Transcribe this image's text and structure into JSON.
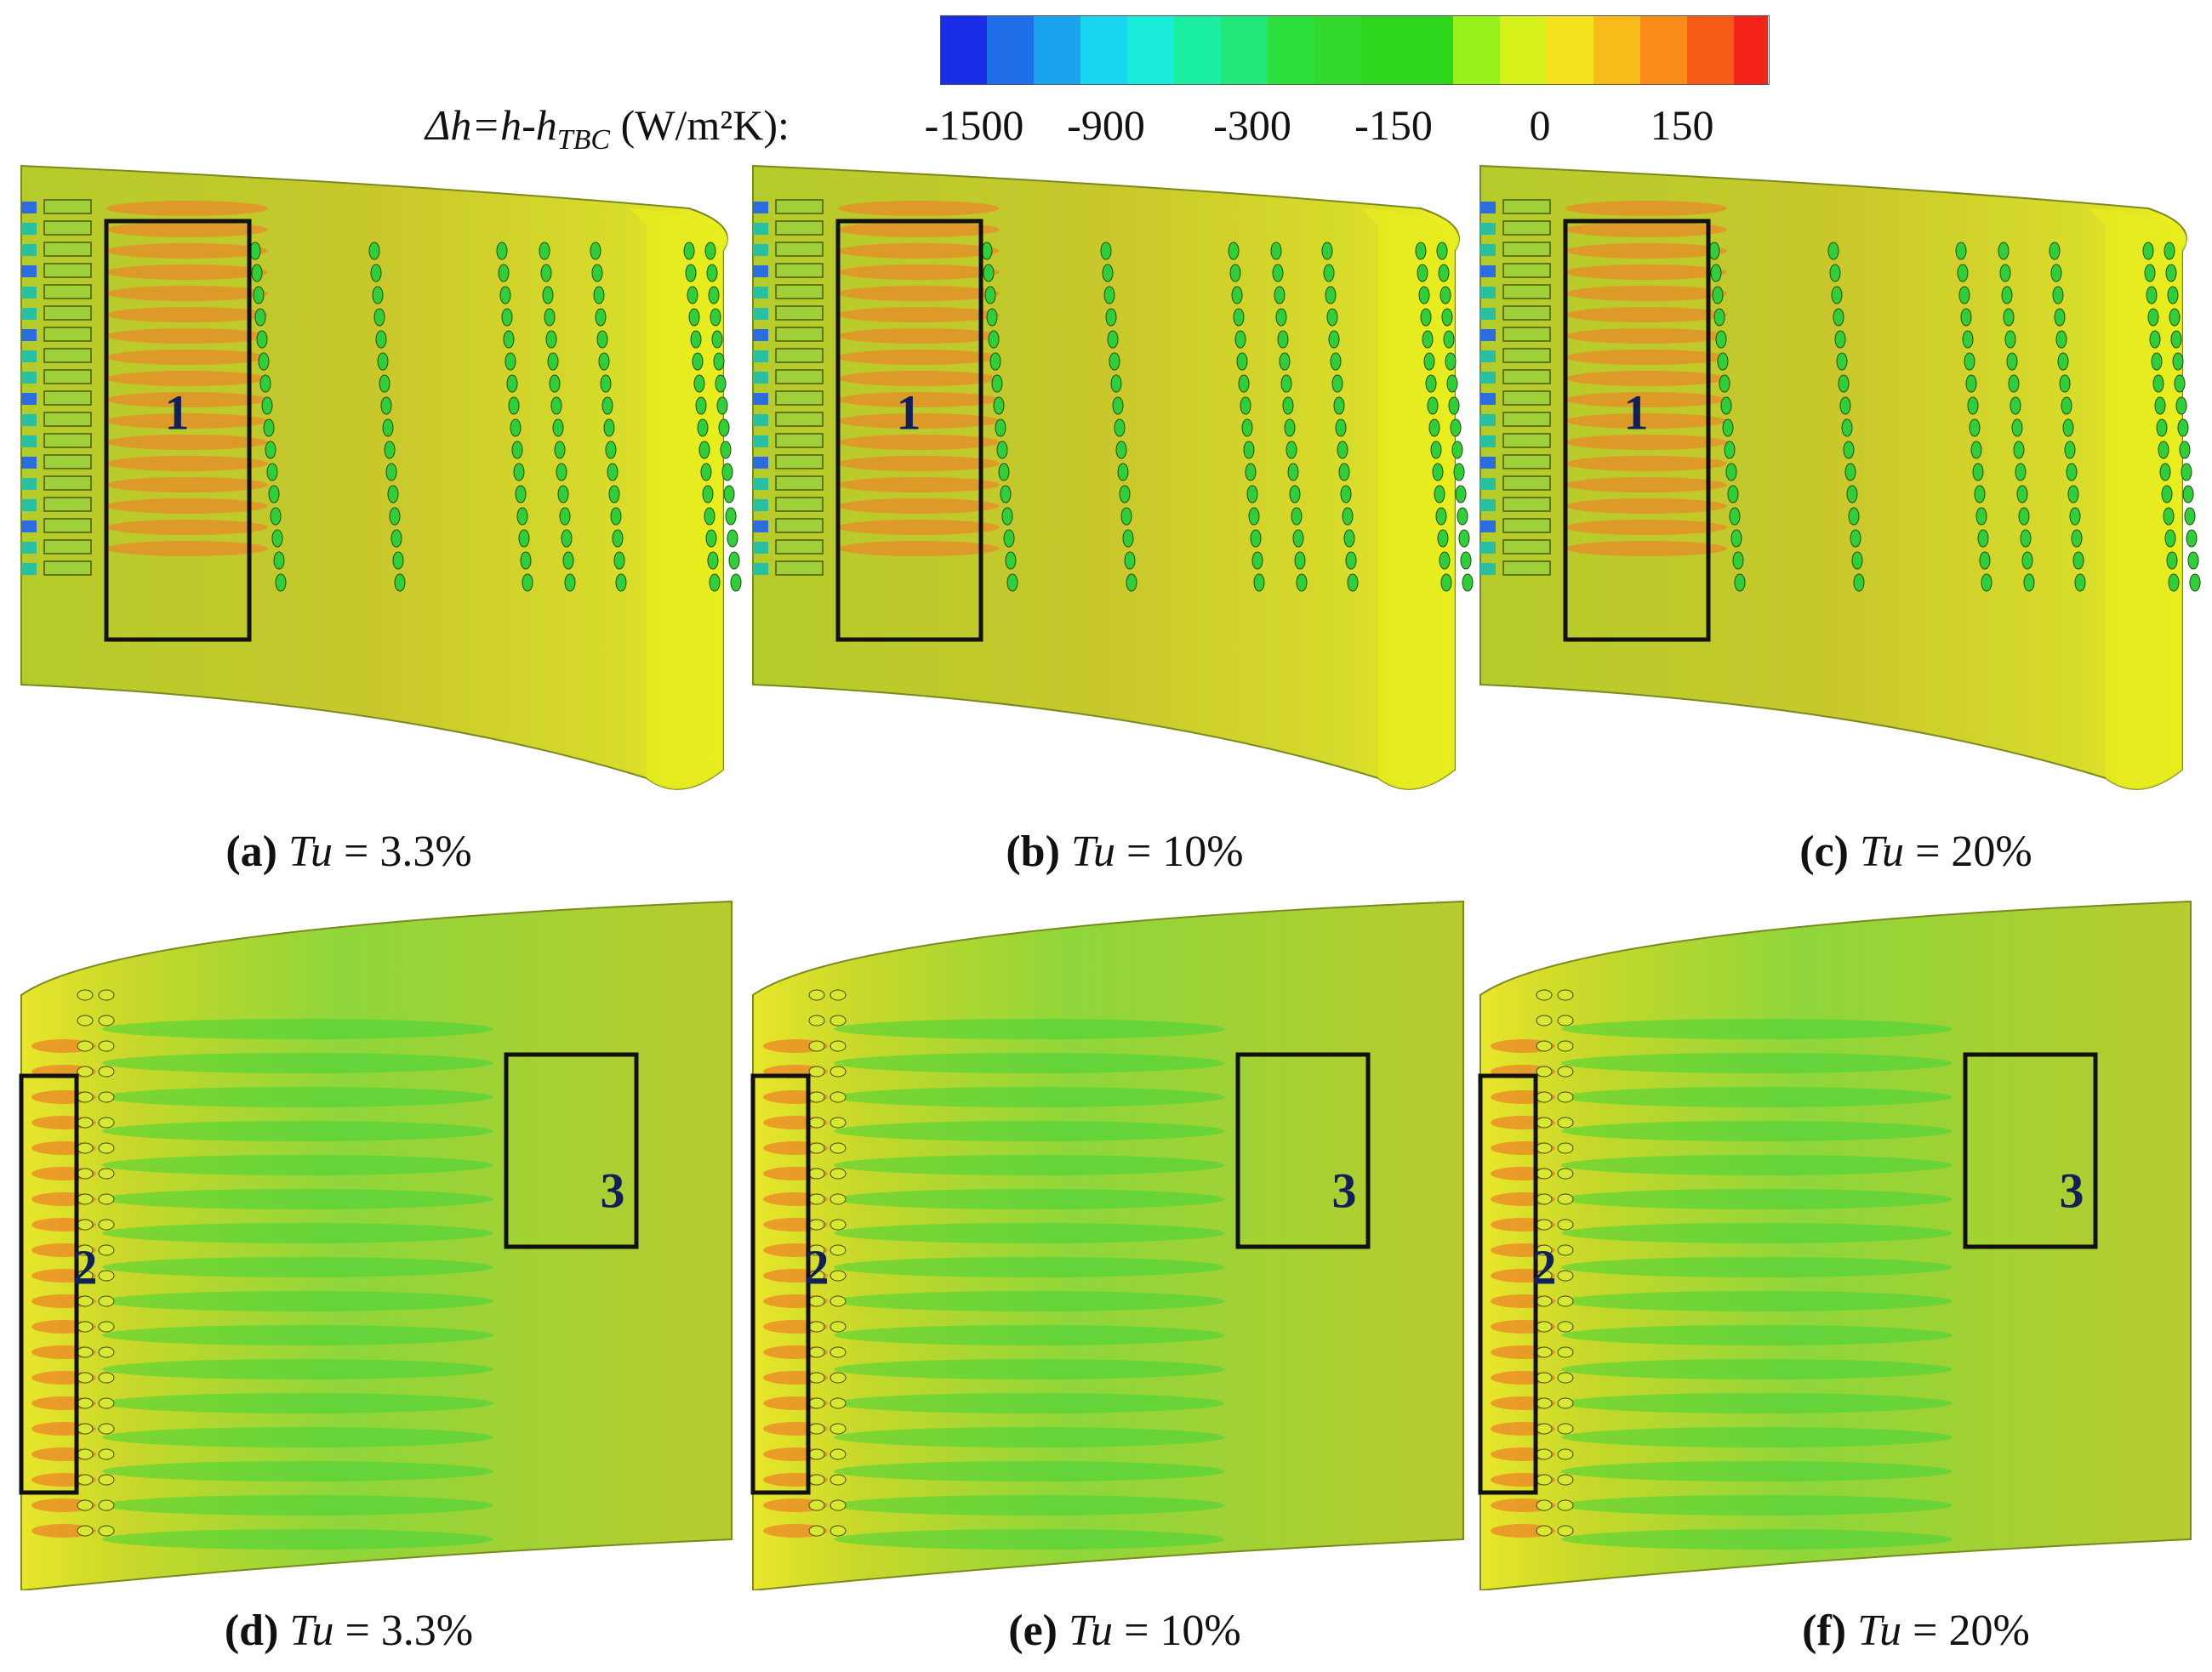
{
  "colorbar": {
    "label_var": "Δh=h-h",
    "label_sub": "TBC",
    "label_unit": " (W/m²K):",
    "ticks": [
      "-1500",
      "-900",
      "-300",
      "-150",
      "0",
      "150"
    ],
    "colors": [
      "#1a2ee8",
      "#1e6fe8",
      "#1ba3ee",
      "#19d6f0",
      "#19ecd8",
      "#1aeea0",
      "#22e87a",
      "#2ee03c",
      "#33d92c",
      "#2fd61e",
      "#98f11a",
      "#d6f01a",
      "#f4e21c",
      "#f8bc1a",
      "#f98c18",
      "#f85a17",
      "#f4241a"
    ]
  },
  "panels": [
    {
      "tag": "(a)",
      "var": "Tu",
      "value": " = 3.3%",
      "box": "1"
    },
    {
      "tag": "(b)",
      "var": "Tu",
      "value": " = 10%",
      "box": "1"
    },
    {
      "tag": "(c)",
      "var": "Tu",
      "value": " = 20%",
      "box": "1"
    },
    {
      "tag": "(d)",
      "var": "Tu",
      "value": " = 3.3%",
      "box1": "2",
      "box2": "3"
    },
    {
      "tag": "(e)",
      "var": "Tu",
      "value": " = 10%",
      "box1": "2",
      "box2": "3"
    },
    {
      "tag": "(f)",
      "var": "Tu",
      "value": " = 20%",
      "box1": "2",
      "box2": "3"
    }
  ]
}
